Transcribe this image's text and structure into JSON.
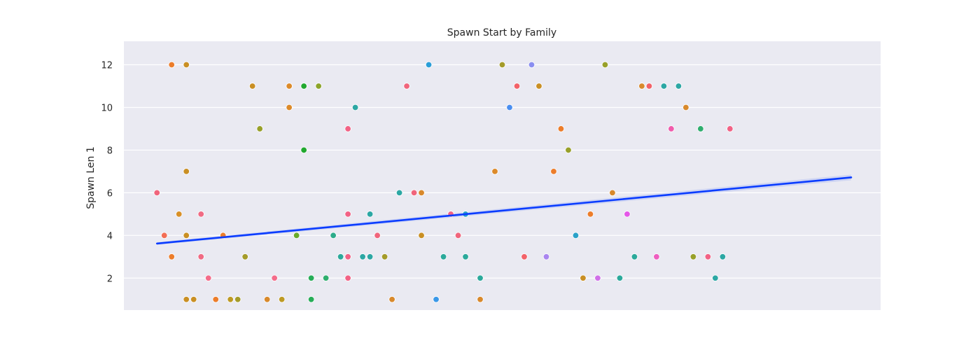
{
  "chart_data": {
    "type": "scatter",
    "title": "Spawn Start by Family",
    "xlabel": "",
    "ylabel": "Spawn Len 1",
    "ylim": [
      0.5,
      13.1
    ],
    "yticks": [
      2,
      4,
      6,
      8,
      10,
      12
    ],
    "xlim": [
      0,
      103
    ],
    "grid": true,
    "background": "#eaeaf2",
    "points": [
      {
        "x": 4.5,
        "y": 6,
        "color": "#f0657c"
      },
      {
        "x": 5.5,
        "y": 4,
        "color": "#f26e55"
      },
      {
        "x": 6.5,
        "y": 12,
        "color": "#ec7d2b"
      },
      {
        "x": 6.5,
        "y": 3,
        "color": "#ec7d2b"
      },
      {
        "x": 7.5,
        "y": 5,
        "color": "#d89028"
      },
      {
        "x": 8.5,
        "y": 12,
        "color": "#c98f24"
      },
      {
        "x": 8.5,
        "y": 7,
        "color": "#c98f24"
      },
      {
        "x": 8.5,
        "y": 4,
        "color": "#c98f24"
      },
      {
        "x": 8.5,
        "y": 1,
        "color": "#c98f24"
      },
      {
        "x": 9.5,
        "y": 1,
        "color": "#c98f24"
      },
      {
        "x": 10.5,
        "y": 5,
        "color": "#f06b84"
      },
      {
        "x": 10.5,
        "y": 3,
        "color": "#f06b84"
      },
      {
        "x": 11.5,
        "y": 2,
        "color": "#f46c8a"
      },
      {
        "x": 12.5,
        "y": 1,
        "color": "#ec7d2b"
      },
      {
        "x": 13.5,
        "y": 4,
        "color": "#ec7d2b"
      },
      {
        "x": 14.5,
        "y": 1,
        "color": "#bd9a25"
      },
      {
        "x": 15.5,
        "y": 1,
        "color": "#a49b2a"
      },
      {
        "x": 16.5,
        "y": 3,
        "color": "#a49b2a"
      },
      {
        "x": 17.5,
        "y": 11,
        "color": "#c98f24"
      },
      {
        "x": 18.5,
        "y": 9,
        "color": "#98a02a"
      },
      {
        "x": 19.5,
        "y": 1,
        "color": "#d8892c"
      },
      {
        "x": 20.5,
        "y": 2,
        "color": "#f46c8a"
      },
      {
        "x": 21.5,
        "y": 1,
        "color": "#bd9a25"
      },
      {
        "x": 22.5,
        "y": 11,
        "color": "#dc8a2a"
      },
      {
        "x": 22.5,
        "y": 10,
        "color": "#dc8a2a"
      },
      {
        "x": 23.5,
        "y": 4,
        "color": "#6aaa2c"
      },
      {
        "x": 24.5,
        "y": 11,
        "color": "#21a82f"
      },
      {
        "x": 24.5,
        "y": 8,
        "color": "#21a82f"
      },
      {
        "x": 25.5,
        "y": 2,
        "color": "#27ad58"
      },
      {
        "x": 25.5,
        "y": 1,
        "color": "#27ad58"
      },
      {
        "x": 26.5,
        "y": 11,
        "color": "#8ca42a"
      },
      {
        "x": 27.5,
        "y": 2,
        "color": "#2fae6e"
      },
      {
        "x": 28.5,
        "y": 4,
        "color": "#2cab8a"
      },
      {
        "x": 29.5,
        "y": 3,
        "color": "#2ca99b"
      },
      {
        "x": 30.5,
        "y": 9,
        "color": "#f26285"
      },
      {
        "x": 30.5,
        "y": 5,
        "color": "#f26285"
      },
      {
        "x": 30.5,
        "y": 3,
        "color": "#f26285"
      },
      {
        "x": 30.5,
        "y": 2,
        "color": "#f26285"
      },
      {
        "x": 31.5,
        "y": 10,
        "color": "#2ca7a4"
      },
      {
        "x": 32.5,
        "y": 3,
        "color": "#2ca7a4"
      },
      {
        "x": 33.5,
        "y": 5,
        "color": "#2ca7a4"
      },
      {
        "x": 33.5,
        "y": 3,
        "color": "#2ca7a4"
      },
      {
        "x": 34.5,
        "y": 4,
        "color": "#f0657c"
      },
      {
        "x": 35.5,
        "y": 3,
        "color": "#a49b2a"
      },
      {
        "x": 36.5,
        "y": 1,
        "color": "#d8892c"
      },
      {
        "x": 37.5,
        "y": 6,
        "color": "#2ca7a4"
      },
      {
        "x": 38.5,
        "y": 11,
        "color": "#f0657c"
      },
      {
        "x": 39.5,
        "y": 6,
        "color": "#f0657c"
      },
      {
        "x": 40.5,
        "y": 6,
        "color": "#d8892c"
      },
      {
        "x": 40.5,
        "y": 4,
        "color": "#c98f24"
      },
      {
        "x": 41.5,
        "y": 12,
        "color": "#2a9ed8"
      },
      {
        "x": 42.5,
        "y": 1,
        "color": "#3a98e8"
      },
      {
        "x": 43.5,
        "y": 3,
        "color": "#2ca99b"
      },
      {
        "x": 44.5,
        "y": 5,
        "color": "#f26285"
      },
      {
        "x": 45.5,
        "y": 4,
        "color": "#f0657c"
      },
      {
        "x": 46.5,
        "y": 5,
        "color": "#2aa1c8"
      },
      {
        "x": 46.5,
        "y": 3,
        "color": "#2ca99b"
      },
      {
        "x": 48.5,
        "y": 1,
        "color": "#d8892c"
      },
      {
        "x": 48.5,
        "y": 2,
        "color": "#2ca99b"
      },
      {
        "x": 50.5,
        "y": 7,
        "color": "#dc8a2a"
      },
      {
        "x": 51.5,
        "y": 12,
        "color": "#a49b2a"
      },
      {
        "x": 52.5,
        "y": 10,
        "color": "#4a8ef0"
      },
      {
        "x": 53.5,
        "y": 11,
        "color": "#f26269"
      },
      {
        "x": 54.5,
        "y": 3,
        "color": "#f26269"
      },
      {
        "x": 55.5,
        "y": 12,
        "color": "#8a8ef0"
      },
      {
        "x": 56.5,
        "y": 11,
        "color": "#c98f24"
      },
      {
        "x": 57.5,
        "y": 3,
        "color": "#a985ef"
      },
      {
        "x": 58.5,
        "y": 7,
        "color": "#ec7d2b"
      },
      {
        "x": 59.5,
        "y": 9,
        "color": "#ec7d2b"
      },
      {
        "x": 60.5,
        "y": 8,
        "color": "#98a02a"
      },
      {
        "x": 61.5,
        "y": 4,
        "color": "#2aa1c8"
      },
      {
        "x": 62.5,
        "y": 2,
        "color": "#c98f24"
      },
      {
        "x": 63.5,
        "y": 5,
        "color": "#ec7d2b"
      },
      {
        "x": 64.5,
        "y": 2,
        "color": "#d070e8"
      },
      {
        "x": 65.5,
        "y": 12,
        "color": "#98a02a"
      },
      {
        "x": 66.5,
        "y": 6,
        "color": "#d8892c"
      },
      {
        "x": 67.5,
        "y": 2,
        "color": "#2ca99b"
      },
      {
        "x": 68.5,
        "y": 5,
        "color": "#e457e8"
      },
      {
        "x": 69.5,
        "y": 3,
        "color": "#2ca99b"
      },
      {
        "x": 70.5,
        "y": 11,
        "color": "#d8892c"
      },
      {
        "x": 71.5,
        "y": 11,
        "color": "#f26269"
      },
      {
        "x": 72.5,
        "y": 3,
        "color": "#ee5ec0"
      },
      {
        "x": 73.5,
        "y": 11,
        "color": "#2ca7a4"
      },
      {
        "x": 74.5,
        "y": 9,
        "color": "#f05cac"
      },
      {
        "x": 75.5,
        "y": 11,
        "color": "#2ca7a4"
      },
      {
        "x": 76.5,
        "y": 10,
        "color": "#d8892c"
      },
      {
        "x": 77.5,
        "y": 3,
        "color": "#98a02a"
      },
      {
        "x": 78.5,
        "y": 9,
        "color": "#2fae6e"
      },
      {
        "x": 79.5,
        "y": 3,
        "color": "#f26285"
      },
      {
        "x": 80.5,
        "y": 2,
        "color": "#2ca7a4"
      },
      {
        "x": 81.5,
        "y": 3,
        "color": "#2ca7a4"
      },
      {
        "x": 82.5,
        "y": 9,
        "color": "#f26285"
      }
    ],
    "regression": {
      "x_start": 4.5,
      "x_end": 99,
      "y_start": 3.62,
      "y_end": 6.72,
      "color": "#0a3cff"
    }
  }
}
